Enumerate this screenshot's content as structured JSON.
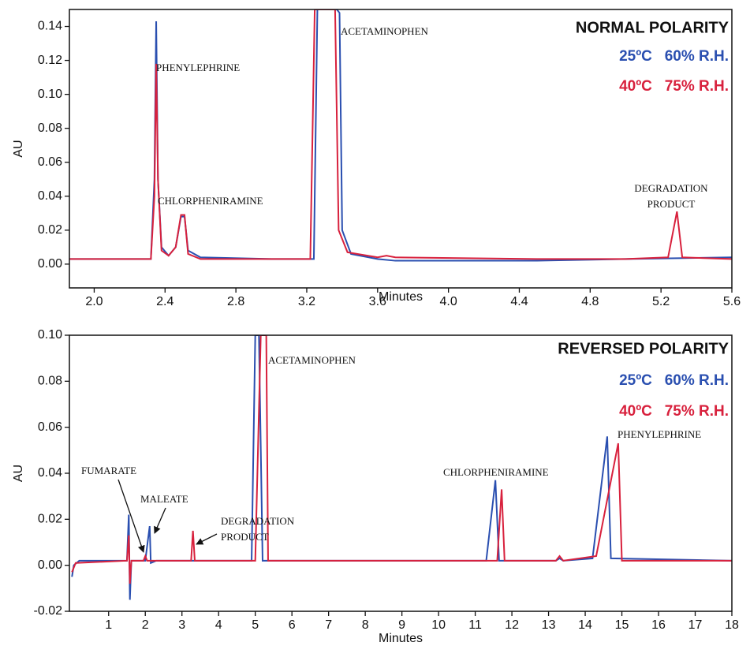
{
  "chart_data": [
    {
      "type": "line",
      "title": "NORMAL POLARITY",
      "ylabel": "AU",
      "xlabel": "Minutes",
      "xlim": [
        1.86,
        5.6
      ],
      "ylim": [
        -0.014,
        0.15
      ],
      "xticks": [
        {
          "value": 2.0,
          "label": "2.0"
        },
        {
          "value": 2.4,
          "label": "2.4"
        },
        {
          "value": 2.8,
          "label": "2.8"
        },
        {
          "value": 3.2,
          "label": "3.2"
        },
        {
          "value": 3.6,
          "label": "3.6"
        },
        {
          "value": 4.0,
          "label": "4.0"
        },
        {
          "value": 4.4,
          "label": "4.4"
        },
        {
          "value": 4.8,
          "label": "4.8"
        },
        {
          "value": 5.2,
          "label": "5.2"
        },
        {
          "value": 5.6,
          "label": "5.6"
        }
      ],
      "yticks": [
        {
          "value": 0,
          "label": "0.00"
        },
        {
          "value": 0.02,
          "label": "0.02"
        },
        {
          "value": 0.04,
          "label": "0.04"
        },
        {
          "value": 0.06,
          "label": "0.06"
        },
        {
          "value": 0.08,
          "label": "0.08"
        },
        {
          "value": 0.1,
          "label": "0.10"
        },
        {
          "value": 0.12,
          "label": "0.12"
        },
        {
          "value": 0.14,
          "label": "0.14"
        }
      ],
      "legend": "upper right",
      "series": [
        {
          "name": "25ºC   60% R.H.",
          "color": "#2a4fb0",
          "x": [
            1.86,
            2.32,
            2.34,
            2.35,
            2.36,
            2.38,
            2.42,
            2.46,
            2.49,
            2.51,
            2.53,
            2.6,
            3.0,
            3.24,
            3.26,
            3.37,
            3.385,
            3.4,
            3.45,
            3.6,
            3.7,
            4.5,
            5.0,
            5.6
          ],
          "values": [
            0.003,
            0.003,
            0.05,
            0.143,
            0.05,
            0.01,
            0.005,
            0.01,
            0.028,
            0.028,
            0.008,
            0.004,
            0.003,
            0.003,
            0.15,
            0.15,
            0.148,
            0.02,
            0.006,
            0.003,
            0.002,
            0.002,
            0.003,
            0.004
          ]
        },
        {
          "name": "40ºC   75% R.H.",
          "color": "#d8213d",
          "x": [
            1.86,
            2.32,
            2.34,
            2.35,
            2.36,
            2.38,
            2.42,
            2.46,
            2.49,
            2.51,
            2.53,
            2.6,
            3.22,
            3.245,
            3.36,
            3.38,
            3.43,
            3.6,
            3.65,
            3.7,
            4.5,
            5.0,
            5.24,
            5.29,
            5.32,
            5.6
          ],
          "values": [
            0.003,
            0.003,
            0.04,
            0.118,
            0.05,
            0.008,
            0.005,
            0.01,
            0.029,
            0.029,
            0.006,
            0.003,
            0.003,
            0.15,
            0.15,
            0.02,
            0.007,
            0.004,
            0.005,
            0.004,
            0.003,
            0.003,
            0.004,
            0.031,
            0.004,
            0.003
          ]
        }
      ],
      "annotations": [
        {
          "text": [
            "PHENYLEPHRINE"
          ]
        },
        {
          "text": [
            "CHLORPHENIRAMINE"
          ]
        },
        {
          "text": [
            "ACETAMINOPHEN"
          ]
        },
        {
          "text": [
            "DEGRADATION",
            "PRODUCT"
          ]
        }
      ]
    },
    {
      "type": "line",
      "title": "REVERSED POLARITY",
      "ylabel": "AU",
      "xlabel": "Minutes",
      "xlim": [
        -0.07,
        18
      ],
      "ylim": [
        -0.02,
        0.1
      ],
      "xticks": [
        1,
        2,
        3,
        4,
        5,
        6,
        7,
        8,
        9,
        10,
        11,
        12,
        13,
        14,
        15,
        16,
        17,
        18
      ],
      "yticks": [
        {
          "value": -0.02,
          "label": "-0.02"
        },
        {
          "value": 0,
          "label": "0.00"
        },
        {
          "value": 0.02,
          "label": "0.02"
        },
        {
          "value": 0.04,
          "label": "0.04"
        },
        {
          "value": 0.06,
          "label": "0.06"
        },
        {
          "value": 0.08,
          "label": "0.08"
        },
        {
          "value": 0.1,
          "label": "0.10"
        }
      ],
      "legend": "upper right",
      "series": [
        {
          "name": "25ºC   60% R.H.",
          "color": "#2a4fb0",
          "x": [
            0,
            0.05,
            0.2,
            1.5,
            1.55,
            1.58,
            1.62,
            2.0,
            2.12,
            2.15,
            2.3,
            4.9,
            5.0,
            5.1,
            5.2,
            11.3,
            11.55,
            11.65,
            13.2,
            13.3,
            13.4,
            14.2,
            14.6,
            14.7,
            18
          ],
          "values": [
            -0.005,
            0.0,
            0.002,
            0.002,
            0.022,
            -0.015,
            0.002,
            0.002,
            0.017,
            0.001,
            0.002,
            0.002,
            0.1,
            0.1,
            0.002,
            0.002,
            0.037,
            0.002,
            0.002,
            0.003,
            0.002,
            0.003,
            0.056,
            0.003,
            0.002
          ]
        },
        {
          "name": "40ºC   75% R.H.",
          "color": "#d8213d",
          "x": [
            0,
            0.1,
            1.5,
            1.55,
            1.58,
            1.62,
            1.95,
            2.0,
            2.05,
            3.25,
            3.3,
            3.35,
            5.0,
            5.15,
            5.3,
            5.35,
            11.6,
            11.72,
            11.8,
            13.2,
            13.3,
            13.4,
            14.3,
            14.9,
            15.0,
            18
          ],
          "values": [
            -0.003,
            0.001,
            0.002,
            0.013,
            -0.008,
            0.002,
            0.002,
            0.004,
            0.002,
            0.002,
            0.015,
            0.002,
            0.002,
            0.1,
            0.1,
            0.002,
            0.002,
            0.033,
            0.002,
            0.002,
            0.004,
            0.002,
            0.004,
            0.053,
            0.002,
            0.002
          ]
        }
      ],
      "annotations": [
        {
          "text": [
            "ACETAMINOPHEN"
          ]
        },
        {
          "text": [
            "FUMARATE"
          ]
        },
        {
          "text": [
            "MALEATE"
          ]
        },
        {
          "text": [
            "DEGRADATION",
            "PRODUCT"
          ]
        },
        {
          "text": [
            "CHLORPHENIRAMINE"
          ]
        },
        {
          "text": [
            "PHENYLEPHRINE"
          ]
        }
      ]
    }
  ]
}
